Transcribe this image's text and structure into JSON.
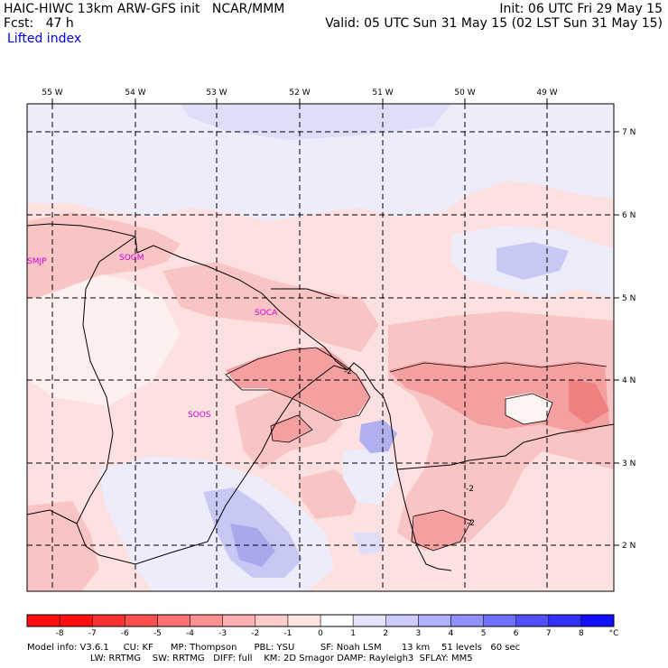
{
  "header": {
    "line1_left": "HAIC-HIWC 13km ARW-GFS init   NCAR/MMM",
    "line1_right": "Init: 06 UTC Fri 29 May 15",
    "line2_left": "Fcst:   47 h",
    "line2_right": "Valid: 05 UTC Sun 31 May 15 (02 LST Sun 31 May 15)",
    "field_name": "Lifted index"
  },
  "map": {
    "lon_labels": [
      "55 W",
      "54 W",
      "53 W",
      "52 W",
      "51 W",
      "50 W",
      "49 W"
    ],
    "lat_labels": [
      "7 N",
      "6 N",
      "5 N",
      "4 N",
      "3 N",
      "2 N"
    ],
    "stations": [
      "SMJP",
      "SOGM",
      "SOCA",
      "SOOS"
    ],
    "contour_labels": [
      "-2",
      "-2",
      "-2"
    ],
    "colors": {
      "light_red": "#fde1e1",
      "mid_red": "#f9b4b4",
      "strong_red": "#f59090",
      "light_blue": "#e8e8fb",
      "mid_blue": "#c4c4f4",
      "strong_blue": "#9a9ae6"
    }
  },
  "colorbar": {
    "labels": [
      "-8",
      "-7",
      "-6",
      "-5",
      "-4",
      "-3",
      "-2",
      "-1",
      "0",
      "1",
      "2",
      "3",
      "4",
      "5",
      "6",
      "7",
      "8"
    ],
    "unit": "°C",
    "colors": [
      "#ff1010",
      "#ff3030",
      "#ff5050",
      "#ff7070",
      "#ff9090",
      "#ffb0b0",
      "#ffcccc",
      "#ffe4e4",
      "#ffffff",
      "#e4e4ff",
      "#ccccff",
      "#b0b0ff",
      "#9090ff",
      "#7070ff",
      "#5050ff",
      "#3030ff",
      "#1010ff"
    ]
  },
  "footer": {
    "line1": "Model info: V3.6.1     CU: KF      MP: Thompson      PBL: YSU         SF: Noah LSM       13 km    51 levels   60 sec",
    "line2": "                      LW: RRTMG    SW: RRTMG   DIFF: full    KM: 2D Smagor DAMP: Rayleigh3  SFLAY: MM5"
  }
}
